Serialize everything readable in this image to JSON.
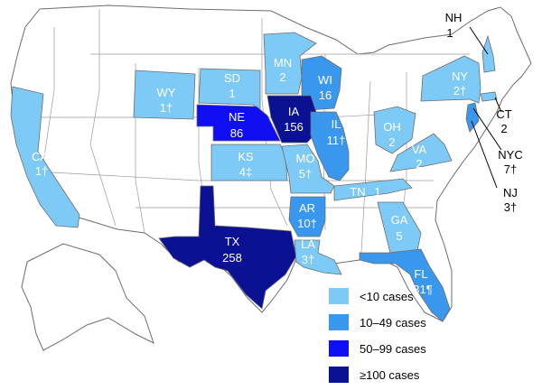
{
  "colors": {
    "none": "#ffffff",
    "lt10": "#7ecaf7",
    "c10_49": "#3a97ee",
    "c50_99": "#0f0ff2",
    "c100plus": "#0a1192",
    "border": "#6d6d6d",
    "leader": "#000000"
  },
  "legend": [
    {
      "label": "<10 cases",
      "color_key": "lt10"
    },
    {
      "label": "10–49 cases",
      "color_key": "c10_49"
    },
    {
      "label": "50–99 cases",
      "color_key": "c50_99"
    },
    {
      "label": "≥100 cases",
      "color_key": "c100plus"
    }
  ],
  "states": [
    {
      "abbr": "CA",
      "cases": "1†"
    },
    {
      "abbr": "WY",
      "cases": "1†"
    },
    {
      "abbr": "SD",
      "cases": "1"
    },
    {
      "abbr": "MN",
      "cases": "2"
    },
    {
      "abbr": "WI",
      "cases": "16"
    },
    {
      "abbr": "NE",
      "cases": "86"
    },
    {
      "abbr": "IA",
      "cases": "156"
    },
    {
      "abbr": "KS",
      "cases": "4‡"
    },
    {
      "abbr": "MO",
      "cases": "5†"
    },
    {
      "abbr": "IL",
      "cases": "11†"
    },
    {
      "abbr": "AR",
      "cases": "10†"
    },
    {
      "abbr": "TX",
      "cases": "258"
    },
    {
      "abbr": "LA",
      "cases": "3†"
    },
    {
      "abbr": "TN",
      "cases": "1"
    },
    {
      "abbr": "GA",
      "cases": "5"
    },
    {
      "abbr": "FL",
      "cases": "31¶"
    },
    {
      "abbr": "OH",
      "cases": "2"
    },
    {
      "abbr": "VA",
      "cases": "2"
    },
    {
      "abbr": "NY",
      "cases": "2†"
    },
    {
      "abbr": "NH",
      "cases": "1"
    },
    {
      "abbr": "CT",
      "cases": "2"
    },
    {
      "abbr": "NYC",
      "cases": "7†"
    },
    {
      "abbr": "NJ",
      "cases": "3†"
    }
  ]
}
